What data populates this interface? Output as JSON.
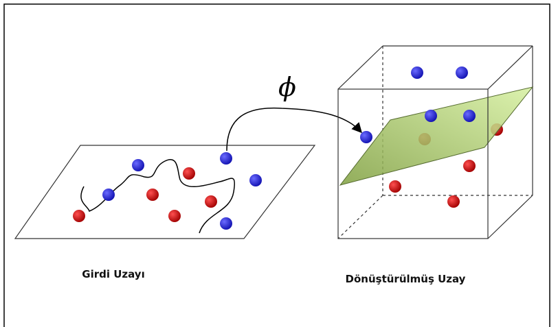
{
  "phi_label": "ϕ",
  "input_space_label": "Girdi Uzayı",
  "transformed_space_label": "Dönüştürülmüş Uzay"
}
